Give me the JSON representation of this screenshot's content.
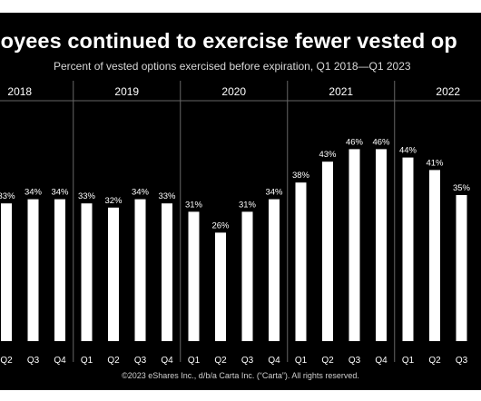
{
  "title": "loyees continued to exercise fewer vested op",
  "subtitle": "Percent of vested options exercised before expiration, Q1 2018—Q1 2023",
  "footer": "©2023 eShares Inc., d/b/a Carta Inc. (“Carta”). All rights reserved.",
  "colors": {
    "background": "#000000",
    "bars": "#ffffff",
    "text": "#ffffff",
    "dividers": "#666666"
  },
  "chart_data": {
    "type": "bar",
    "title": "loyees continued to exercise fewer vested op",
    "subtitle": "Percent of vested options exercised before expiration, Q1 2018—Q1 2023",
    "years": [
      "2018",
      "2019",
      "2020",
      "2021",
      "2022"
    ],
    "categories": [
      "Q2",
      "Q3",
      "Q4",
      "Q1",
      "Q2",
      "Q3",
      "Q4",
      "Q1",
      "Q2",
      "Q3",
      "Q4",
      "Q1",
      "Q2",
      "Q3",
      "Q4",
      "Q1",
      "Q2",
      "Q3"
    ],
    "year_of_category": [
      "2018",
      "2018",
      "2018",
      "2019",
      "2019",
      "2019",
      "2019",
      "2020",
      "2020",
      "2020",
      "2020",
      "2021",
      "2021",
      "2021",
      "2021",
      "2022",
      "2022",
      "2022"
    ],
    "values": [
      33,
      34,
      34,
      33,
      32,
      34,
      33,
      31,
      26,
      31,
      34,
      38,
      43,
      46,
      46,
      44,
      41,
      35
    ],
    "value_labels": [
      "33%",
      "34%",
      "34%",
      "33%",
      "32%",
      "34%",
      "33%",
      "31%",
      "26%",
      "31%",
      "34%",
      "38%",
      "43%",
      "46%",
      "46%",
      "44%",
      "41%",
      "35%"
    ],
    "unit": "%",
    "grid": false,
    "legend": "none"
  }
}
